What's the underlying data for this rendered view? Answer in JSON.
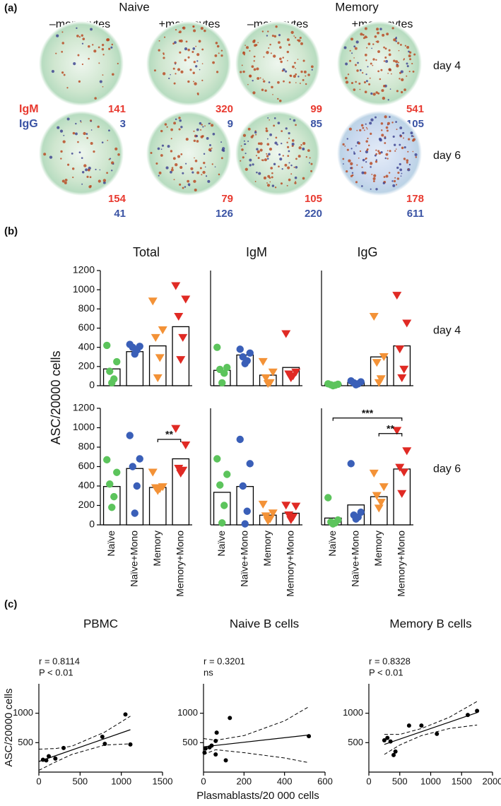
{
  "panel_labels": [
    "(a)",
    "(b)",
    "(c)"
  ],
  "panel_a": {
    "groups": [
      "Naive",
      "Memory"
    ],
    "conditions": [
      "–monocytes",
      "+monocytes",
      "–monocytes",
      "+monocytes"
    ],
    "days": [
      "day 4",
      "day 6"
    ],
    "isotypes": [
      "IgM",
      "IgG"
    ],
    "isotype_colors": [
      "#e8392f",
      "#3a53a4"
    ],
    "wells": [
      [
        [
          141,
          3
        ],
        [
          320,
          9
        ],
        [
          99,
          85
        ],
        [
          541,
          105
        ]
      ],
      [
        [
          154,
          41
        ],
        [
          79,
          126
        ],
        [
          105,
          220
        ],
        [
          178,
          611
        ]
      ]
    ]
  },
  "chart_data": [
    {
      "type": "bar",
      "title": "Total",
      "ylabel": "ASC/20000 cells",
      "categories": [
        null,
        null,
        null,
        null
      ],
      "values": [
        175,
        355,
        415,
        615
      ],
      "points": [
        [
          420,
          250,
          150,
          70,
          30
        ],
        [
          430,
          410,
          400,
          370,
          330
        ],
        [
          880,
          580,
          500,
          290,
          80
        ],
        [
          1040,
          900,
          720,
          500,
          270
        ]
      ],
      "colors": [
        "#5cc45c",
        "#3a5fb8",
        "#f39237",
        "#e02a24"
      ],
      "markers": [
        "circle",
        "circle",
        "triangle-down",
        "triangle-down"
      ],
      "ylim": [
        0,
        1200
      ],
      "yticks": [
        0,
        200,
        400,
        600,
        800,
        1000,
        1200
      ]
    },
    {
      "type": "bar",
      "title": "IgM",
      "categories": [
        null,
        null,
        null,
        null
      ],
      "values": [
        160,
        320,
        110,
        190
      ],
      "points": [
        [
          400,
          190,
          170,
          130,
          30
        ],
        [
          380,
          340,
          300,
          260,
          230
        ],
        [
          250,
          140,
          80,
          30,
          20
        ],
        [
          540,
          140,
          120,
          100,
          80
        ]
      ],
      "colors": [
        "#5cc45c",
        "#3a5fb8",
        "#f39237",
        "#e02a24"
      ],
      "markers": [
        "circle",
        "circle",
        "triangle-down",
        "triangle-down"
      ],
      "ylim": [
        0,
        1200
      ]
    },
    {
      "type": "bar",
      "title": "IgG",
      "annotation": "day 4",
      "categories": [
        null,
        null,
        null,
        null
      ],
      "values": [
        15,
        35,
        300,
        415
      ],
      "points": [
        [
          20,
          15,
          10,
          5,
          0
        ],
        [
          50,
          40,
          30,
          20,
          10
        ],
        [
          720,
          300,
          240,
          70,
          30
        ],
        [
          940,
          650,
          380,
          170,
          80
        ]
      ],
      "colors": [
        "#5cc45c",
        "#3a5fb8",
        "#f39237",
        "#e02a24"
      ],
      "markers": [
        "circle",
        "circle",
        "triangle-down",
        "triangle-down"
      ],
      "ylim": [
        0,
        1200
      ]
    },
    {
      "type": "bar",
      "categories": [
        "Naïve",
        "Naïve+Mono",
        "Memory",
        "Memory+Mono"
      ],
      "values": [
        395,
        580,
        385,
        680
      ],
      "points": [
        [
          670,
          540,
          420,
          290,
          180
        ],
        [
          920,
          680,
          600,
          400,
          120
        ],
        [
          540,
          390,
          380,
          370,
          350
        ],
        [
          990,
          820,
          580,
          560,
          530
        ]
      ],
      "colors": [
        "#5cc45c",
        "#3a5fb8",
        "#f39237",
        "#e02a24"
      ],
      "markers": [
        "circle",
        "circle",
        "triangle-down",
        "triangle-down"
      ],
      "ylim": [
        0,
        1200
      ],
      "yticks": [
        0,
        200,
        400,
        600,
        800,
        1000,
        1200
      ],
      "significance": [
        {
          "from": 2,
          "to": 3,
          "y": 880,
          "label": "**"
        }
      ]
    },
    {
      "type": "bar",
      "categories": [
        "Naïve",
        "Naïve+Mono",
        "Memory",
        "Memory+Mono"
      ],
      "values": [
        335,
        395,
        100,
        120
      ],
      "points": [
        [
          680,
          520,
          410,
          200,
          20
        ],
        [
          880,
          630,
          400,
          140,
          10
        ],
        [
          210,
          120,
          90,
          60,
          40
        ],
        [
          200,
          190,
          100,
          80,
          50
        ]
      ],
      "colors": [
        "#5cc45c",
        "#3a5fb8",
        "#f39237",
        "#e02a24"
      ],
      "markers": [
        "circle",
        "circle",
        "triangle-down",
        "triangle-down"
      ],
      "ylim": [
        0,
        1200
      ]
    },
    {
      "type": "bar",
      "annotation": "day 6",
      "categories": [
        "Naïve",
        "Naïve+Mono",
        "Memory",
        "Memory+Mono"
      ],
      "values": [
        70,
        205,
        290,
        575
      ],
      "points": [
        [
          280,
          50,
          30,
          20,
          10
        ],
        [
          630,
          130,
          100,
          80,
          60
        ],
        [
          530,
          390,
          300,
          230,
          170
        ],
        [
          970,
          760,
          590,
          540,
          320
        ]
      ],
      "colors": [
        "#5cc45c",
        "#3a5fb8",
        "#f39237",
        "#e02a24"
      ],
      "markers": [
        "circle",
        "circle",
        "triangle-down",
        "triangle-down"
      ],
      "ylim": [
        0,
        1200
      ],
      "significance": [
        {
          "from": 0,
          "to": 3,
          "y": 1100,
          "label": "***"
        },
        {
          "from": 2,
          "to": 3,
          "y": 940,
          "label": "**"
        }
      ]
    },
    {
      "type": "scatter",
      "title": "PBMC",
      "ylabel": "ASC/20000 cells",
      "annotations": [
        "r = 0.8114",
        "P < 0.01"
      ],
      "x": [
        50,
        90,
        120,
        200,
        300,
        770,
        800,
        1050,
        1110
      ],
      "y": [
        210,
        200,
        270,
        230,
        410,
        600,
        480,
        980,
        470
      ],
      "fit_x": [
        0,
        1110
      ],
      "fit_y": [
        180,
        720
      ],
      "ci_x": [
        0,
        200,
        400,
        800,
        1110
      ],
      "ci_upper": [
        390,
        400,
        440,
        680,
        950
      ],
      "ci_lower": [
        30,
        170,
        300,
        460,
        480
      ],
      "color": "#000000",
      "xlim": [
        0,
        1500
      ],
      "xticks": [
        0,
        500,
        1000,
        1500
      ],
      "ylim": [
        0,
        1500
      ],
      "yticks": [
        500,
        1000
      ]
    },
    {
      "type": "scatter",
      "title": "Naive B cells",
      "xlabel": "Plasmablasts/20 000 cells",
      "annotations": [
        "r = 0.3201",
        "ns"
      ],
      "x": [
        5,
        10,
        30,
        40,
        60,
        60,
        65,
        110,
        130,
        520
      ],
      "y": [
        330,
        400,
        420,
        450,
        530,
        300,
        670,
        200,
        920,
        610
      ],
      "fit_x": [
        0,
        520
      ],
      "fit_y": [
        430,
        630
      ],
      "ci_x": [
        0,
        60,
        200,
        400,
        520
      ],
      "ci_upper": [
        570,
        540,
        620,
        870,
        1110
      ],
      "ci_lower": [
        300,
        380,
        330,
        240,
        160
      ],
      "color": "#000000",
      "xlim": [
        0,
        600
      ],
      "xticks": [
        0,
        200,
        400,
        600
      ],
      "ylim": [
        0,
        1500
      ],
      "yticks": [
        500,
        1000
      ]
    },
    {
      "type": "scatter",
      "title": "Memory B cells",
      "annotations": [
        "r = 0.8328",
        "P < 0.01"
      ],
      "x": [
        250,
        300,
        350,
        400,
        430,
        650,
        850,
        1100,
        1600,
        1750
      ],
      "y": [
        540,
        580,
        520,
        290,
        350,
        790,
        790,
        650,
        970,
        1040
      ],
      "fit_x": [
        250,
        1750
      ],
      "fit_y": [
        470,
        1010
      ],
      "ci_x": [
        250,
        500,
        850,
        1300,
        1750
      ],
      "ci_upper": [
        640,
        640,
        740,
        930,
        1200
      ],
      "ci_lower": [
        300,
        460,
        620,
        740,
        800
      ],
      "color": "#000000",
      "xlim": [
        0,
        2000
      ],
      "xticks": [
        0,
        500,
        1000,
        1500,
        2000
      ],
      "ylim": [
        0,
        1500
      ],
      "yticks": [
        500,
        1000
      ]
    }
  ]
}
